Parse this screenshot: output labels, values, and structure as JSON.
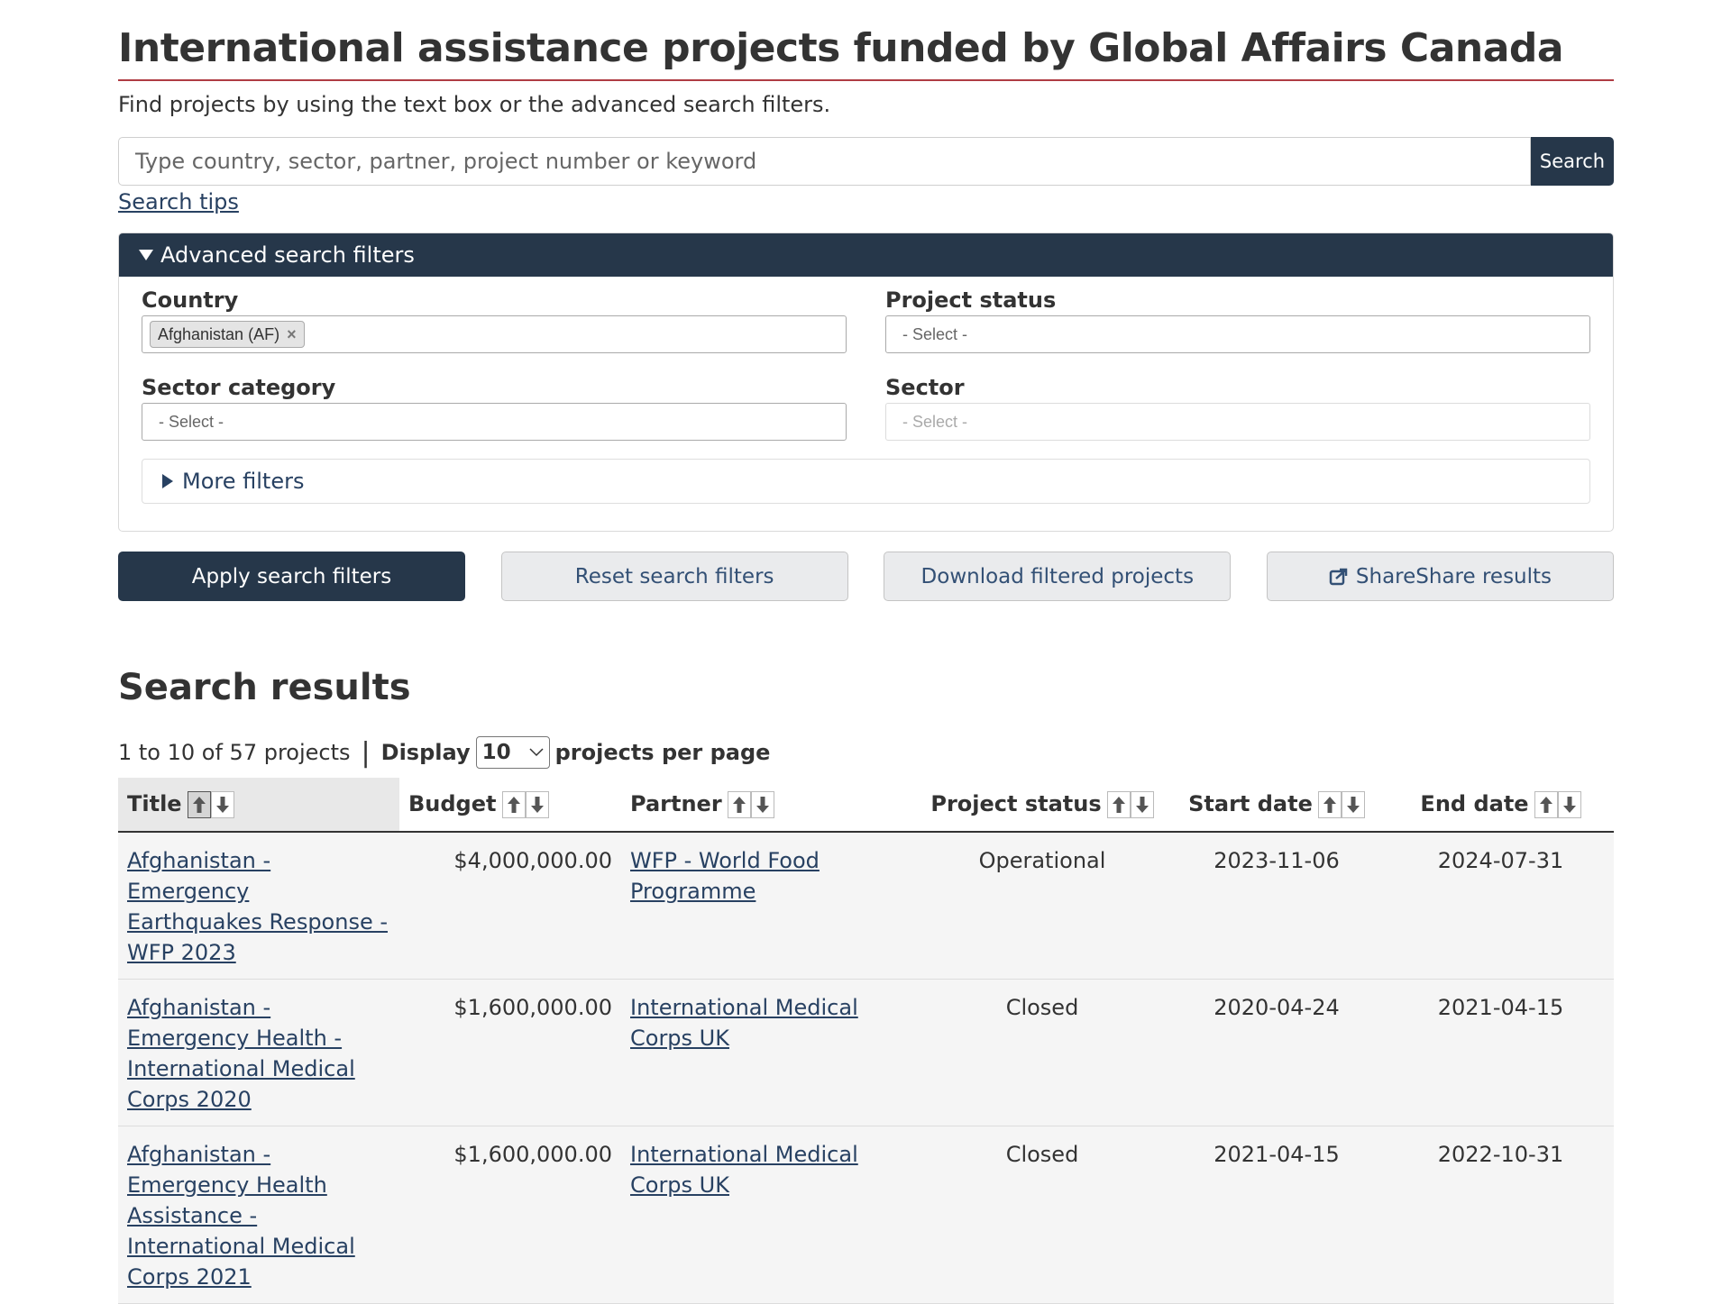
{
  "page": {
    "title": "International assistance projects funded by Global Affairs Canada",
    "intro": "Find projects by using the text box or the advanced search filters."
  },
  "search": {
    "placeholder": "Type country, sector, partner, project number or keyword",
    "value": "",
    "button": "Search",
    "tips_link": "Search tips"
  },
  "advanced": {
    "heading": "Advanced search filters",
    "country": {
      "label": "Country",
      "selected": "Afghanistan (AF)",
      "remove_glyph": "×"
    },
    "project_status": {
      "label": "Project status",
      "placeholder": "- Select -"
    },
    "sector_category": {
      "label": "Sector category",
      "placeholder": "- Select -"
    },
    "sector": {
      "label": "Sector",
      "placeholder": "- Select -"
    },
    "more_filters": "More filters"
  },
  "buttons": {
    "apply": "Apply search filters",
    "reset": "Reset search filters",
    "download": "Download filtered projects",
    "share": "ShareShare results"
  },
  "results": {
    "heading": "Search results",
    "range": "1 to 10 of 57 projects",
    "display_label": "Display",
    "per_page": "10",
    "per_page_suffix": "projects per page",
    "columns": [
      "Title",
      "Budget",
      "Partner",
      "Project status",
      "Start date",
      "End date"
    ],
    "rows": [
      {
        "title": "Afghanistan - Emergency Earthquakes Response - WFP 2023",
        "budget": "$4,000,000.00",
        "partner": "WFP - World Food Programme",
        "status": "Operational",
        "start": "2023-11-06",
        "end": "2024-07-31"
      },
      {
        "title": "Afghanistan - Emergency Health - International Medical Corps 2020",
        "budget": "$1,600,000.00",
        "partner": "International Medical Corps UK",
        "status": "Closed",
        "start": "2020-04-24",
        "end": "2021-04-15"
      },
      {
        "title": "Afghanistan - Emergency Health Assistance - International Medical Corps 2021",
        "budget": "$1,600,000.00",
        "partner": "International Medical Corps UK",
        "status": "Closed",
        "start": "2021-04-15",
        "end": "2022-10-31"
      }
    ]
  },
  "colors": {
    "primary": "#26374a",
    "link": "#284162",
    "title_rule": "#af3c43"
  },
  "icons": {
    "sort_asc": "arrow-up-icon",
    "sort_desc": "arrow-down-icon",
    "share": "share-icon",
    "expand": "triangle-down-icon",
    "collapse": "triangle-right-icon"
  }
}
